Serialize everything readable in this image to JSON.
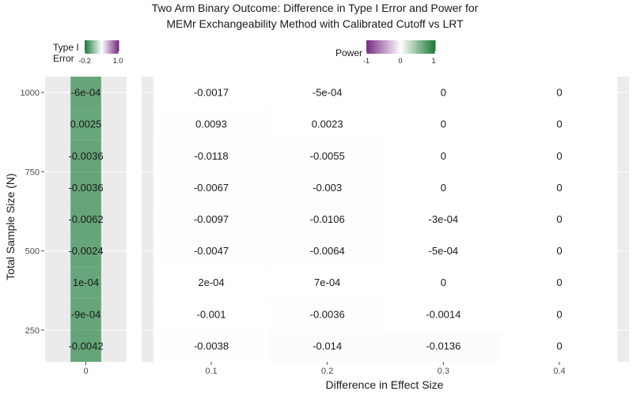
{
  "chart_data": {
    "type": "heatmap",
    "title": [
      "Two Arm Binary Outcome: Difference in Type I Error and Power for",
      "MEMr Exchangeability Method with Calibrated Cutoff vs LRT"
    ],
    "xlabel": "Difference in Effect Size",
    "ylabel": "Total Sample Size (N)",
    "sample_sizes": [
      200,
      300,
      400,
      500,
      600,
      700,
      800,
      900,
      1000
    ],
    "y_ticks": [
      250,
      500,
      750,
      1000
    ],
    "ylim": [
      150,
      1050
    ],
    "panels": [
      {
        "name": "type1",
        "x_ticks": [
          0
        ],
        "effect_sizes": [
          0
        ],
        "values": [
          [
            -0.0042
          ],
          [
            -0.0009
          ],
          [
            0.0001
          ],
          [
            -0.0024
          ],
          [
            -0.0062
          ],
          [
            -0.0036
          ],
          [
            -0.0036
          ],
          [
            0.0025
          ],
          [
            -0.0006
          ]
        ],
        "labels": [
          [
            "-0.0042"
          ],
          [
            "-9e-04"
          ],
          [
            "1e-04"
          ],
          [
            "-0.0024"
          ],
          [
            "-0.0062"
          ],
          [
            "-0.0036"
          ],
          [
            "-0.0036"
          ],
          [
            "0.0025"
          ],
          [
            "-6e-04"
          ]
        ]
      },
      {
        "name": "power",
        "x_ticks": [
          0.1,
          0.2,
          0.3,
          0.4
        ],
        "effect_sizes": [
          0.1,
          0.2,
          0.3,
          0.4
        ],
        "values": [
          [
            -0.0038,
            -0.014,
            -0.0136,
            0
          ],
          [
            -0.001,
            -0.0036,
            -0.0014,
            0
          ],
          [
            0.0002,
            0.0007,
            0,
            0
          ],
          [
            -0.0047,
            -0.0064,
            -0.0005,
            0
          ],
          [
            -0.0097,
            -0.0106,
            -0.0003,
            0
          ],
          [
            -0.0067,
            -0.003,
            0,
            0
          ],
          [
            -0.0118,
            -0.0055,
            0,
            0
          ],
          [
            0.0093,
            0.0023,
            0,
            0
          ],
          [
            -0.0017,
            -0.0005,
            0,
            0
          ]
        ],
        "labels": [
          [
            "-0.0038",
            "-0.014",
            "-0.0136",
            "0"
          ],
          [
            "-0.001",
            "-0.0036",
            "-0.0014",
            "0"
          ],
          [
            "2e-04",
            "7e-04",
            "0",
            "0"
          ],
          [
            "-0.0047",
            "-0.0064",
            "-5e-04",
            "0"
          ],
          [
            "-0.0097",
            "-0.0106",
            "-3e-04",
            "0"
          ],
          [
            "-0.0067",
            "-0.003",
            "0",
            "0"
          ],
          [
            "-0.0118",
            "-0.0055",
            "0",
            "0"
          ],
          [
            "0.0093",
            "0.0023",
            "0",
            "0"
          ],
          [
            "-0.0017",
            "-5e-04",
            "0",
            "0"
          ]
        ]
      }
    ],
    "legends": [
      {
        "title": [
          "Type I",
          "Error"
        ],
        "range": [
          -0.2,
          1.0
        ],
        "tick_labels": [
          "-0.2",
          "1.0"
        ],
        "colors": [
          "#1b7837",
          "#ffffff",
          "#762a83"
        ]
      },
      {
        "title": [
          "Power"
        ],
        "range": [
          -1,
          1
        ],
        "tick_labels": [
          "-1",
          "0",
          "1"
        ],
        "colors": [
          "#762a83",
          "#ffffff",
          "#1b7837"
        ]
      }
    ],
    "panel_background": "#ebebeb",
    "grid": true
  }
}
